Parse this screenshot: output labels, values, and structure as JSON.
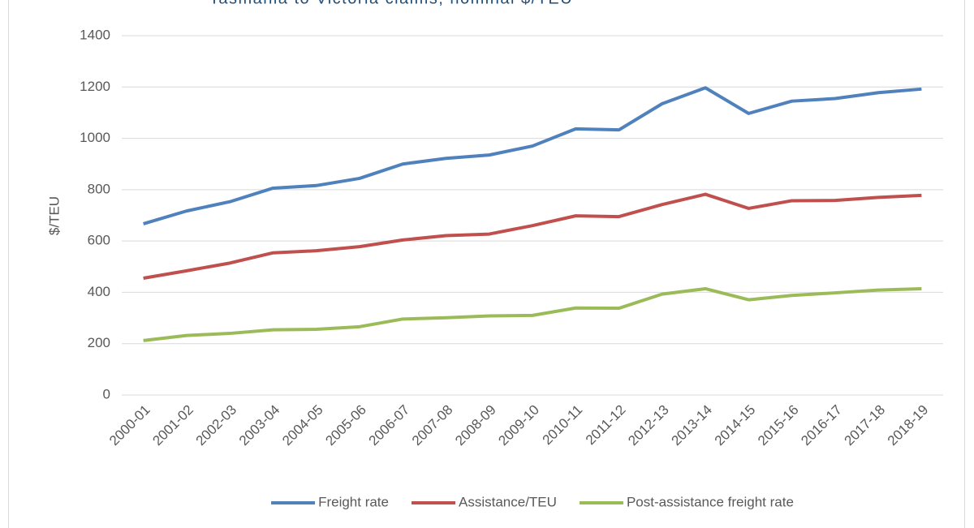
{
  "chart_data": {
    "type": "line",
    "title": "Tasmania to Victoria claims, nominal $/TEU",
    "y_label": "$/TEU",
    "categories": [
      "2000-01",
      "2001-02",
      "2002-03",
      "2003-04",
      "2004-05",
      "2005-06",
      "2006-07",
      "2007-08",
      "2008-09",
      "2009-10",
      "2010-11",
      "2011-12",
      "2012-13",
      "2013-14",
      "2014-15",
      "2015-16",
      "2016-17",
      "2017-18",
      "2018-19"
    ],
    "series": [
      {
        "name": "Freight rate",
        "color": "#4f81bd",
        "values": [
          667,
          717,
          753,
          806,
          816,
          844,
          900,
          922,
          935,
          970,
          1037,
          1033,
          1135,
          1197,
          1097,
          1145,
          1155,
          1178,
          1192
        ]
      },
      {
        "name": "Assistance/TEU",
        "color": "#c0504d",
        "values": [
          455,
          484,
          514,
          554,
          562,
          578,
          604,
          621,
          627,
          660,
          698,
          695,
          742,
          782,
          727,
          757,
          758,
          770,
          778
        ]
      },
      {
        "name": "Post-assistance freight rate",
        "color": "#9bbb59",
        "values": [
          212,
          232,
          240,
          254,
          256,
          266,
          296,
          301,
          308,
          310,
          339,
          338,
          393,
          414,
          371,
          388,
          398,
          409,
          414
        ]
      }
    ],
    "ylim": [
      0,
      1400
    ],
    "yticks": [
      0,
      200,
      400,
      600,
      800,
      1000,
      1200,
      1400
    ],
    "grid": true,
    "legend": "bottom"
  }
}
